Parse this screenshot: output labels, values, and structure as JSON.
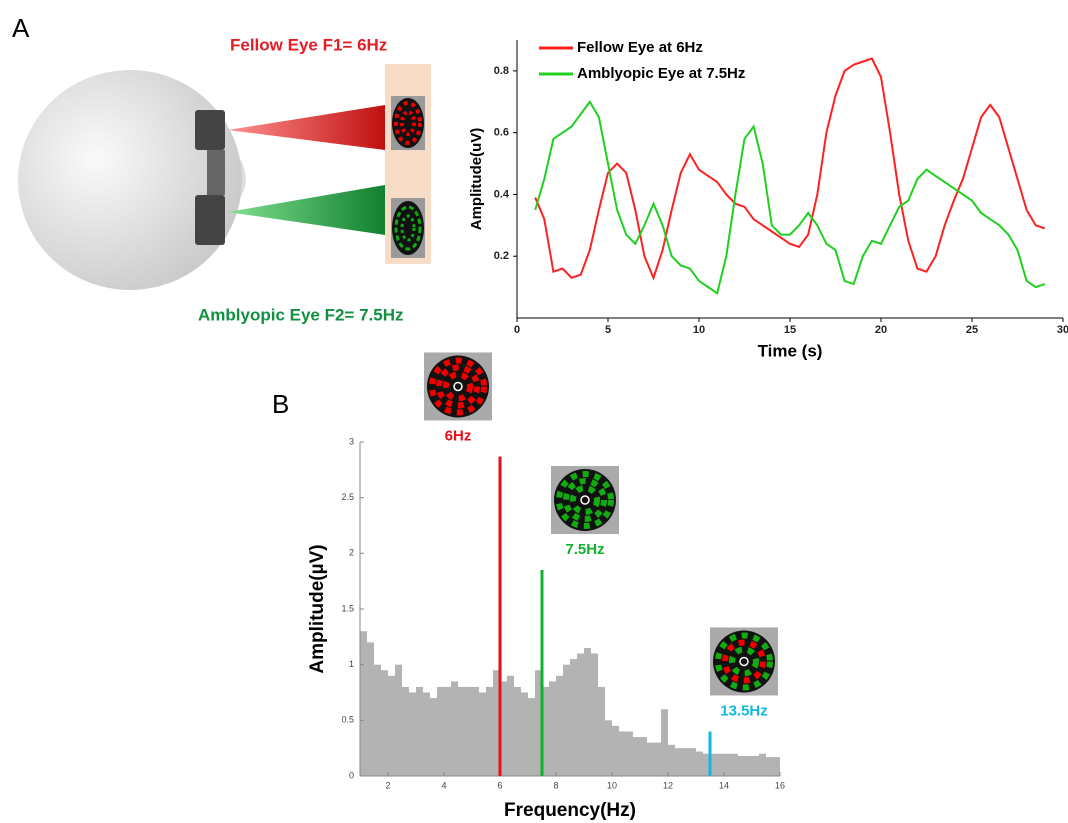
{
  "labels": {
    "panel_a": "A",
    "panel_b": "B",
    "fellow": "Fellow Eye F1= 6Hz",
    "amblyopic": "Amblyopic Eye F2= 7.5Hz"
  },
  "chart_data": [
    {
      "type": "line",
      "x_label": "Time (s)",
      "y_label": "Amplitude(uV)",
      "x": [
        1,
        1.5,
        2,
        2.5,
        3,
        3.5,
        4,
        4.5,
        5,
        5.5,
        6,
        6.5,
        7,
        7.5,
        8,
        8.5,
        9,
        9.5,
        10,
        10.5,
        11,
        11.5,
        12,
        12.5,
        13,
        13.5,
        14,
        14.5,
        15,
        15.5,
        16,
        16.5,
        17,
        17.5,
        18,
        18.5,
        19,
        19.5,
        20,
        20.5,
        21,
        21.5,
        22,
        22.5,
        23,
        23.5,
        24,
        24.5,
        25,
        25.5,
        26,
        26.5,
        27,
        27.5,
        28,
        28.5,
        29
      ],
      "series": [
        {
          "name": "Fellow Eye at 6Hz",
          "color": "#ff2020",
          "values": [
            0.39,
            0.32,
            0.15,
            0.16,
            0.13,
            0.14,
            0.22,
            0.35,
            0.47,
            0.5,
            0.47,
            0.35,
            0.2,
            0.13,
            0.22,
            0.35,
            0.47,
            0.53,
            0.48,
            0.46,
            0.44,
            0.4,
            0.37,
            0.36,
            0.32,
            0.3,
            0.28,
            0.26,
            0.24,
            0.23,
            0.27,
            0.4,
            0.6,
            0.72,
            0.8,
            0.82,
            0.83,
            0.84,
            0.78,
            0.6,
            0.4,
            0.25,
            0.16,
            0.15,
            0.2,
            0.3,
            0.38,
            0.45,
            0.55,
            0.65,
            0.69,
            0.65,
            0.55,
            0.45,
            0.35,
            0.3,
            0.29
          ]
        },
        {
          "name": "Amblyopic Eye at 7.5Hz",
          "color": "#20d020",
          "values": [
            0.35,
            0.45,
            0.58,
            0.6,
            0.62,
            0.66,
            0.7,
            0.65,
            0.5,
            0.35,
            0.27,
            0.24,
            0.3,
            0.37,
            0.3,
            0.2,
            0.17,
            0.16,
            0.12,
            0.1,
            0.08,
            0.2,
            0.4,
            0.58,
            0.62,
            0.5,
            0.3,
            0.27,
            0.27,
            0.3,
            0.34,
            0.3,
            0.24,
            0.22,
            0.12,
            0.11,
            0.2,
            0.25,
            0.24,
            0.3,
            0.36,
            0.38,
            0.45,
            0.48,
            0.46,
            0.44,
            0.42,
            0.4,
            0.38,
            0.34,
            0.32,
            0.3,
            0.27,
            0.22,
            0.12,
            0.1,
            0.11
          ]
        }
      ],
      "xlim": [
        0,
        30
      ],
      "xticks": [
        0,
        5,
        10,
        15,
        20,
        25,
        30
      ],
      "ylim": [
        0,
        0.9
      ],
      "yticks": [
        0.2,
        0.4,
        0.6,
        0.8
      ]
    },
    {
      "type": "histogram",
      "x_label": "Frequency(Hz)",
      "y_label": "Amplitude(µV)",
      "color": "#b3b3b3",
      "bins": [
        1,
        1.25,
        1.5,
        1.75,
        2,
        2.25,
        2.5,
        2.75,
        3,
        3.25,
        3.5,
        3.75,
        4,
        4.25,
        4.5,
        4.75,
        5,
        5.25,
        5.5,
        5.75,
        6,
        6.25,
        6.5,
        6.75,
        7,
        7.25,
        7.5,
        7.75,
        8,
        8.25,
        8.5,
        8.75,
        9,
        9.25,
        9.5,
        9.75,
        10,
        10.25,
        10.5,
        10.75,
        11,
        11.25,
        11.5,
        11.75,
        12,
        12.25,
        12.5,
        12.75,
        13,
        13.25,
        13.5,
        13.75,
        14,
        14.25,
        14.5,
        14.75,
        15,
        15.25,
        15.5,
        15.75,
        16
      ],
      "values": [
        1.3,
        1.2,
        1.0,
        0.95,
        0.9,
        1.0,
        0.8,
        0.75,
        0.8,
        0.75,
        0.7,
        0.8,
        0.8,
        0.85,
        0.8,
        0.8,
        0.8,
        0.75,
        0.8,
        0.95,
        0.85,
        0.9,
        0.8,
        0.75,
        0.7,
        0.95,
        0.8,
        0.85,
        0.9,
        1.0,
        1.05,
        1.1,
        1.15,
        1.1,
        0.8,
        0.5,
        0.45,
        0.4,
        0.4,
        0.35,
        0.35,
        0.3,
        0.3,
        0.6,
        0.28,
        0.25,
        0.25,
        0.25,
        0.22,
        0.2,
        0.2,
        0.2,
        0.2,
        0.2,
        0.18,
        0.18,
        0.18,
        0.2,
        0.17,
        0.17
      ],
      "peaks": [
        {
          "x": 6,
          "value": 2.87,
          "label": "6Hz",
          "color": "#e8101a"
        },
        {
          "x": 7.5,
          "value": 1.85,
          "label": "7.5Hz",
          "color": "#10b030"
        },
        {
          "x": 13.5,
          "value": 0.4,
          "label": "13.5Hz",
          "color": "#10b8e0"
        }
      ],
      "xlim": [
        1,
        16
      ],
      "xticks": [
        2,
        4,
        6,
        8,
        10,
        12,
        14,
        16
      ],
      "ylim": [
        0,
        3
      ],
      "yticks": [
        0,
        0.5,
        1,
        1.5,
        2,
        2.5,
        3
      ]
    }
  ]
}
